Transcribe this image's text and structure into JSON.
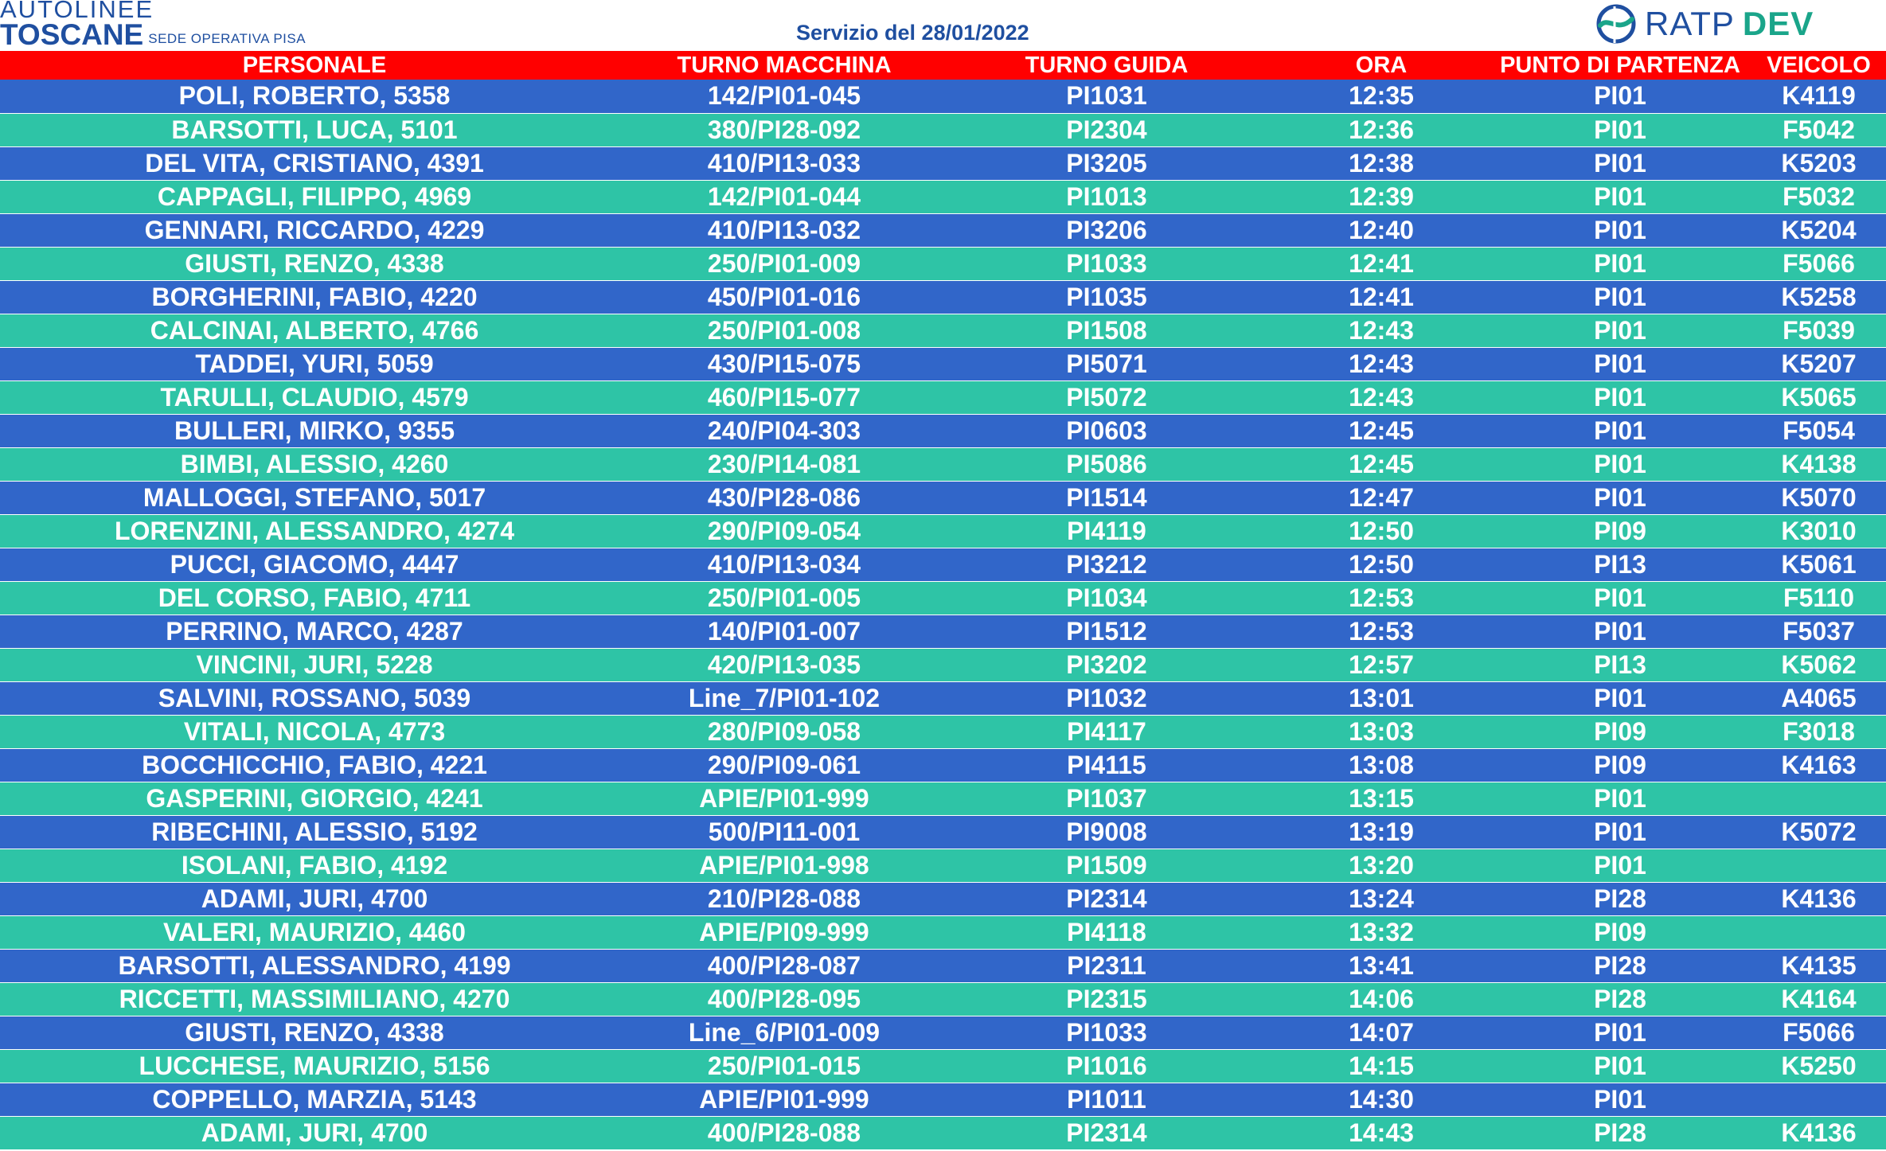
{
  "header": {
    "logo_line1": "AUTOLINEE",
    "logo_line2": "TOSCANE",
    "logo_sub": "SEDE OPERATIVA PISA",
    "service_label": "Servizio del 28/01/2022",
    "ratp_text": "RATP",
    "dev_text": "DEV",
    "ratp_icon": "ratp-river-icon"
  },
  "colors": {
    "header_red": "#ff0000",
    "row_blue": "#3166c9",
    "row_teal": "#2ec4a6",
    "brand_blue": "#1f4fa0",
    "brand_green": "#1aa58a"
  },
  "table": {
    "columns": [
      "PERSONALE",
      "TURNO MACCHINA",
      "TURNO GUIDA",
      "ORA",
      "PUNTO DI PARTENZA",
      "VEICOLO"
    ],
    "rows": [
      [
        "POLI, ROBERTO, 5358",
        "142/PI01-045",
        "PI1031",
        "12:35",
        "PI01",
        "K4119"
      ],
      [
        "BARSOTTI, LUCA, 5101",
        "380/PI28-092",
        "PI2304",
        "12:36",
        "PI01",
        "F5042"
      ],
      [
        "DEL VITA, CRISTIANO, 4391",
        "410/PI13-033",
        "PI3205",
        "12:38",
        "PI01",
        "K5203"
      ],
      [
        "CAPPAGLI, FILIPPO, 4969",
        "142/PI01-044",
        "PI1013",
        "12:39",
        "PI01",
        "F5032"
      ],
      [
        "GENNARI, RICCARDO, 4229",
        "410/PI13-032",
        "PI3206",
        "12:40",
        "PI01",
        "K5204"
      ],
      [
        "GIUSTI, RENZO, 4338",
        "250/PI01-009",
        "PI1033",
        "12:41",
        "PI01",
        "F5066"
      ],
      [
        "BORGHERINI, FABIO, 4220",
        "450/PI01-016",
        "PI1035",
        "12:41",
        "PI01",
        "K5258"
      ],
      [
        "CALCINAI, ALBERTO, 4766",
        "250/PI01-008",
        "PI1508",
        "12:43",
        "PI01",
        "F5039"
      ],
      [
        "TADDEI, YURI, 5059",
        "430/PI15-075",
        "PI5071",
        "12:43",
        "PI01",
        "K5207"
      ],
      [
        "TARULLI, CLAUDIO, 4579",
        "460/PI15-077",
        "PI5072",
        "12:43",
        "PI01",
        "K5065"
      ],
      [
        "BULLERI, MIRKO, 9355",
        "240/PI04-303",
        "PI0603",
        "12:45",
        "PI01",
        "F5054"
      ],
      [
        "BIMBI, ALESSIO, 4260",
        "230/PI14-081",
        "PI5086",
        "12:45",
        "PI01",
        "K4138"
      ],
      [
        "MALLOGGI, STEFANO, 5017",
        "430/PI28-086",
        "PI1514",
        "12:47",
        "PI01",
        "K5070"
      ],
      [
        "LORENZINI, ALESSANDRO, 4274",
        "290/PI09-054",
        "PI4119",
        "12:50",
        "PI09",
        "K3010"
      ],
      [
        "PUCCI, GIACOMO, 4447",
        "410/PI13-034",
        "PI3212",
        "12:50",
        "PI13",
        "K5061"
      ],
      [
        "DEL CORSO, FABIO, 4711",
        "250/PI01-005",
        "PI1034",
        "12:53",
        "PI01",
        "F5110"
      ],
      [
        "PERRINO, MARCO, 4287",
        "140/PI01-007",
        "PI1512",
        "12:53",
        "PI01",
        "F5037"
      ],
      [
        "VINCINI, JURI, 5228",
        "420/PI13-035",
        "PI3202",
        "12:57",
        "PI13",
        "K5062"
      ],
      [
        "SALVINI, ROSSANO, 5039",
        "Line_7/PI01-102",
        "PI1032",
        "13:01",
        "PI01",
        "A4065"
      ],
      [
        "VITALI, NICOLA, 4773",
        "280/PI09-058",
        "PI4117",
        "13:03",
        "PI09",
        "F3018"
      ],
      [
        "BOCCHICCHIO, FABIO, 4221",
        "290/PI09-061",
        "PI4115",
        "13:08",
        "PI09",
        "K4163"
      ],
      [
        "GASPERINI, GIORGIO, 4241",
        "APIE/PI01-999",
        "PI1037",
        "13:15",
        "PI01",
        ""
      ],
      [
        "RIBECHINI, ALESSIO, 5192",
        "500/PI11-001",
        "PI9008",
        "13:19",
        "PI01",
        "K5072"
      ],
      [
        "ISOLANI, FABIO, 4192",
        "APIE/PI01-998",
        "PI1509",
        "13:20",
        "PI01",
        ""
      ],
      [
        "ADAMI, JURI, 4700",
        "210/PI28-088",
        "PI2314",
        "13:24",
        "PI28",
        "K4136"
      ],
      [
        "VALERI, MAURIZIO, 4460",
        "APIE/PI09-999",
        "PI4118",
        "13:32",
        "PI09",
        ""
      ],
      [
        "BARSOTTI, ALESSANDRO, 4199",
        "400/PI28-087",
        "PI2311",
        "13:41",
        "PI28",
        "K4135"
      ],
      [
        "RICCETTI, MASSIMILIANO, 4270",
        "400/PI28-095",
        "PI2315",
        "14:06",
        "PI28",
        "K4164"
      ],
      [
        "GIUSTI, RENZO, 4338",
        "Line_6/PI01-009",
        "PI1033",
        "14:07",
        "PI01",
        "F5066"
      ],
      [
        "LUCCHESE, MAURIZIO, 5156",
        "250/PI01-015",
        "PI1016",
        "14:15",
        "PI01",
        "K5250"
      ],
      [
        "COPPELLO, MARZIA, 5143",
        "APIE/PI01-999",
        "PI1011",
        "14:30",
        "PI01",
        ""
      ],
      [
        "ADAMI, JURI, 4700",
        "400/PI28-088",
        "PI2314",
        "14:43",
        "PI28",
        "K4136"
      ]
    ]
  }
}
